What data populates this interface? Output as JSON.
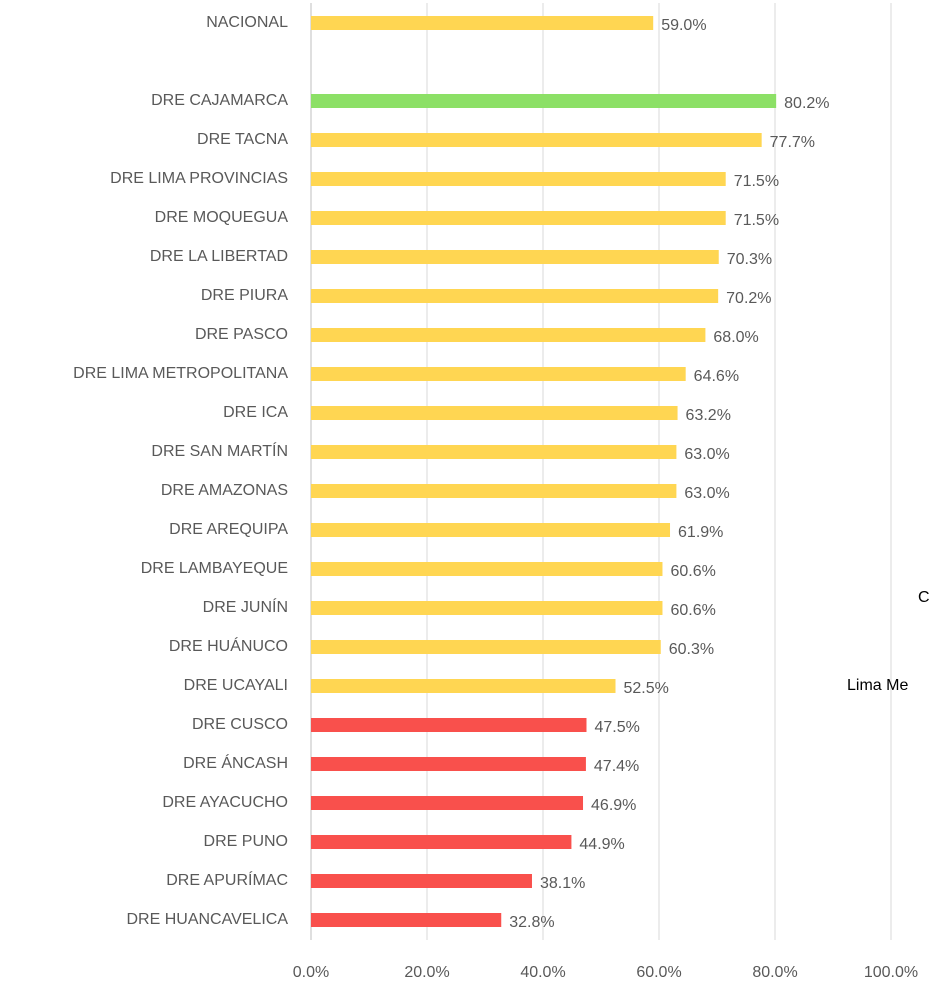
{
  "chart_data": {
    "type": "hbar",
    "categories": [
      "NACIONAL",
      null,
      "DRE CAJAMARCA",
      "DRE TACNA",
      "DRE LIMA PROVINCIAS",
      "DRE MOQUEGUA",
      "DRE LA LIBERTAD",
      "DRE PIURA",
      "DRE PASCO",
      "DRE LIMA METROPOLITANA",
      "DRE ICA",
      "DRE SAN MARTÍN",
      "DRE AMAZONAS",
      "DRE AREQUIPA",
      "DRE LAMBAYEQUE",
      "DRE JUNÍN",
      "DRE HUÁNUCO",
      "DRE UCAYALI",
      "DRE CUSCO",
      "DRE ÁNCASH",
      "DRE AYACUCHO",
      "DRE PUNO",
      "DRE APURÍMAC",
      "DRE HUANCAVELICA"
    ],
    "values": [
      59.0,
      null,
      80.2,
      77.7,
      71.5,
      71.5,
      70.3,
      70.2,
      68.0,
      64.6,
      63.2,
      63.0,
      63.0,
      61.9,
      60.6,
      60.6,
      60.3,
      52.5,
      47.5,
      47.4,
      46.9,
      44.9,
      38.1,
      32.8
    ],
    "value_labels": [
      "59.0%",
      null,
      "80.2%",
      "77.7%",
      "71.5%",
      "71.5%",
      "70.3%",
      "70.2%",
      "68.0%",
      "64.6%",
      "63.2%",
      "63.0%",
      "63.0%",
      "61.9%",
      "60.6%",
      "60.6%",
      "60.3%",
      "52.5%",
      "47.5%",
      "47.4%",
      "46.9%",
      "44.9%",
      "38.1%",
      "32.8%"
    ],
    "colors": [
      "#FFD652",
      null,
      "#8CE066",
      "#FFD652",
      "#FFD652",
      "#FFD652",
      "#FFD652",
      "#FFD652",
      "#FFD652",
      "#FFD652",
      "#FFD652",
      "#FFD652",
      "#FFD652",
      "#FFD652",
      "#FFD652",
      "#FFD652",
      "#FFD652",
      "#FFD652",
      "#F9504C",
      "#F9504C",
      "#F9504C",
      "#F9504C",
      "#F9504C",
      "#F9504C"
    ],
    "xlim": [
      0,
      100
    ],
    "xticks": [
      {
        "value": 0,
        "label": "0.0%"
      },
      {
        "value": 20,
        "label": "20.0%"
      },
      {
        "value": 40,
        "label": "40.0%"
      },
      {
        "value": 60,
        "label": "60.0%"
      },
      {
        "value": 80,
        "label": "80.0%"
      },
      {
        "value": 100,
        "label": "100.0%"
      }
    ],
    "grid": true,
    "annotations": [
      {
        "text": "C"
      },
      {
        "text": "Lima Me"
      }
    ]
  }
}
